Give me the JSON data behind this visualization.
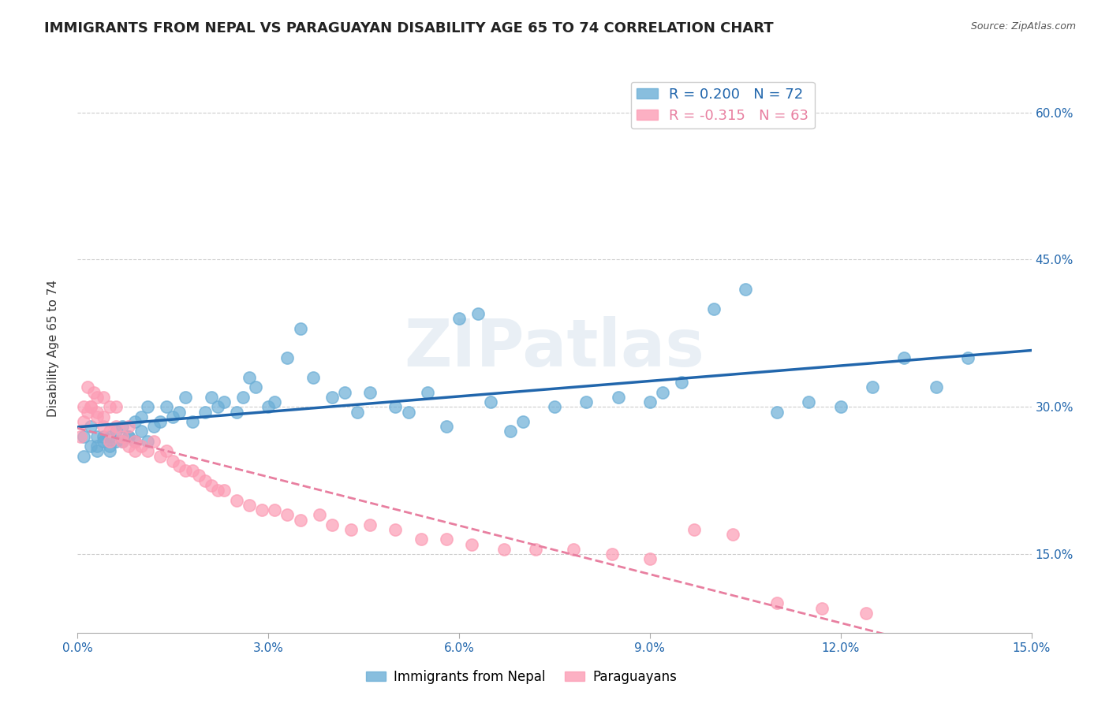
{
  "title": "IMMIGRANTS FROM NEPAL VS PARAGUAYAN DISABILITY AGE 65 TO 74 CORRELATION CHART",
  "source": "Source: ZipAtlas.com",
  "xlabel": "",
  "ylabel": "Disability Age 65 to 74",
  "xlim": [
    0.0,
    0.15
  ],
  "ylim": [
    0.07,
    0.65
  ],
  "yticks": [
    0.15,
    0.3,
    0.45,
    0.6
  ],
  "xticks": [
    0.0,
    0.03,
    0.06,
    0.09,
    0.12,
    0.15
  ],
  "nepal_R": 0.2,
  "nepal_N": 72,
  "para_R": -0.315,
  "para_N": 63,
  "nepal_color": "#6baed6",
  "para_color": "#fc9cb4",
  "nepal_line_color": "#2166ac",
  "para_line_color": "#e87fa0",
  "tick_color": "#2166ac",
  "background_color": "#ffffff",
  "watermark": "ZIPatlas",
  "legend_labels": [
    "Immigrants from Nepal",
    "Paraguayans"
  ],
  "title_fontsize": 13,
  "axis_label_fontsize": 11,
  "tick_fontsize": 11,
  "nepal_scatter": {
    "x": [
      0.001,
      0.001,
      0.002,
      0.002,
      0.003,
      0.003,
      0.003,
      0.004,
      0.004,
      0.005,
      0.005,
      0.005,
      0.006,
      0.006,
      0.007,
      0.007,
      0.008,
      0.008,
      0.009,
      0.009,
      0.01,
      0.01,
      0.011,
      0.011,
      0.012,
      0.013,
      0.014,
      0.015,
      0.016,
      0.017,
      0.018,
      0.02,
      0.021,
      0.022,
      0.023,
      0.025,
      0.026,
      0.027,
      0.028,
      0.03,
      0.031,
      0.033,
      0.035,
      0.037,
      0.04,
      0.042,
      0.044,
      0.046,
      0.05,
      0.052,
      0.055,
      0.058,
      0.06,
      0.063,
      0.065,
      0.068,
      0.07,
      0.075,
      0.08,
      0.085,
      0.09,
      0.092,
      0.095,
      0.1,
      0.105,
      0.11,
      0.115,
      0.12,
      0.125,
      0.13,
      0.135,
      0.14
    ],
    "y": [
      0.27,
      0.25,
      0.28,
      0.26,
      0.27,
      0.255,
      0.26,
      0.27,
      0.265,
      0.26,
      0.255,
      0.27,
      0.265,
      0.275,
      0.28,
      0.265,
      0.27,
      0.27,
      0.285,
      0.265,
      0.275,
      0.29,
      0.3,
      0.265,
      0.28,
      0.285,
      0.3,
      0.29,
      0.295,
      0.31,
      0.285,
      0.295,
      0.31,
      0.3,
      0.305,
      0.295,
      0.31,
      0.33,
      0.32,
      0.3,
      0.305,
      0.35,
      0.38,
      0.33,
      0.31,
      0.315,
      0.295,
      0.315,
      0.3,
      0.295,
      0.315,
      0.28,
      0.39,
      0.395,
      0.305,
      0.275,
      0.285,
      0.3,
      0.305,
      0.31,
      0.305,
      0.315,
      0.325,
      0.4,
      0.42,
      0.295,
      0.305,
      0.3,
      0.32,
      0.35,
      0.32,
      0.35
    ]
  },
  "para_scatter": {
    "x": [
      0.0005,
      0.001,
      0.001,
      0.0015,
      0.0015,
      0.002,
      0.002,
      0.0025,
      0.003,
      0.003,
      0.003,
      0.004,
      0.004,
      0.004,
      0.005,
      0.005,
      0.005,
      0.006,
      0.006,
      0.007,
      0.007,
      0.008,
      0.008,
      0.009,
      0.009,
      0.01,
      0.011,
      0.012,
      0.013,
      0.014,
      0.015,
      0.016,
      0.017,
      0.018,
      0.019,
      0.02,
      0.021,
      0.022,
      0.023,
      0.025,
      0.027,
      0.029,
      0.031,
      0.033,
      0.035,
      0.038,
      0.04,
      0.043,
      0.046,
      0.05,
      0.054,
      0.058,
      0.062,
      0.067,
      0.072,
      0.078,
      0.084,
      0.09,
      0.097,
      0.103,
      0.11,
      0.117,
      0.124
    ],
    "y": [
      0.27,
      0.3,
      0.285,
      0.32,
      0.295,
      0.3,
      0.3,
      0.315,
      0.31,
      0.29,
      0.295,
      0.28,
      0.29,
      0.31,
      0.3,
      0.265,
      0.275,
      0.28,
      0.3,
      0.265,
      0.27,
      0.26,
      0.28,
      0.255,
      0.265,
      0.26,
      0.255,
      0.265,
      0.25,
      0.255,
      0.245,
      0.24,
      0.235,
      0.235,
      0.23,
      0.225,
      0.22,
      0.215,
      0.215,
      0.205,
      0.2,
      0.195,
      0.195,
      0.19,
      0.185,
      0.19,
      0.18,
      0.175,
      0.18,
      0.175,
      0.165,
      0.165,
      0.16,
      0.155,
      0.155,
      0.155,
      0.15,
      0.145,
      0.175,
      0.17,
      0.1,
      0.095,
      0.09
    ]
  }
}
